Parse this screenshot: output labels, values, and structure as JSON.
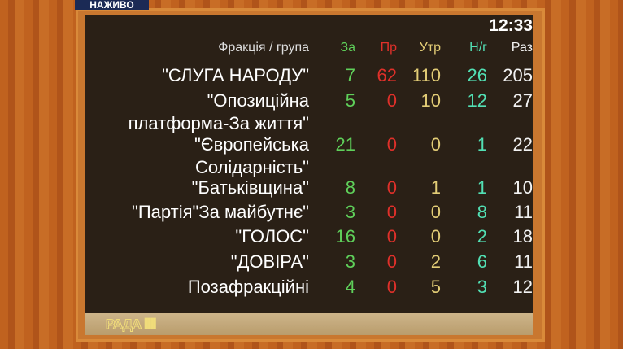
{
  "badge": "НАЖИВО",
  "clock": "12:33",
  "logo": "РАДА",
  "header": {
    "faction": "Фракція / група",
    "za": "За",
    "pr": "Пр",
    "utr": "Утр",
    "ng": "Н/г",
    "raz": "Раз"
  },
  "colors": {
    "za": "#5fd05a",
    "pr": "#e0302a",
    "utr": "#e3cd76",
    "ng": "#52e0b4",
    "raz": "#f2f2f2"
  },
  "rows": [
    {
      "name": "\"СЛУГА НАРОДУ\"",
      "za": "7",
      "pr": "62",
      "utr": "110",
      "ng": "26",
      "raz": "205"
    },
    {
      "name": "\"Опозиційна",
      "name2": "платформа-За життя\"",
      "za": "5",
      "pr": "0",
      "utr": "10",
      "ng": "12",
      "raz": "27"
    },
    {
      "name": "\"Європейська",
      "name2": "Солідарність\"",
      "za": "21",
      "pr": "0",
      "utr": "0",
      "ng": "1",
      "raz": "22"
    },
    {
      "name": "\"Батьківщина\"",
      "za": "8",
      "pr": "0",
      "utr": "1",
      "ng": "1",
      "raz": "10"
    },
    {
      "name": "\"Партія\"За майбутнє\"",
      "za": "3",
      "pr": "0",
      "utr": "0",
      "ng": "8",
      "raz": "11"
    },
    {
      "name": "\"ГОЛОС\"",
      "za": "16",
      "pr": "0",
      "utr": "0",
      "ng": "2",
      "raz": "18"
    },
    {
      "name": "\"ДОВІРА\"",
      "za": "3",
      "pr": "0",
      "utr": "2",
      "ng": "6",
      "raz": "11"
    },
    {
      "name": "Позафракційні",
      "za": "4",
      "pr": "0",
      "utr": "5",
      "ng": "3",
      "raz": "12"
    }
  ]
}
